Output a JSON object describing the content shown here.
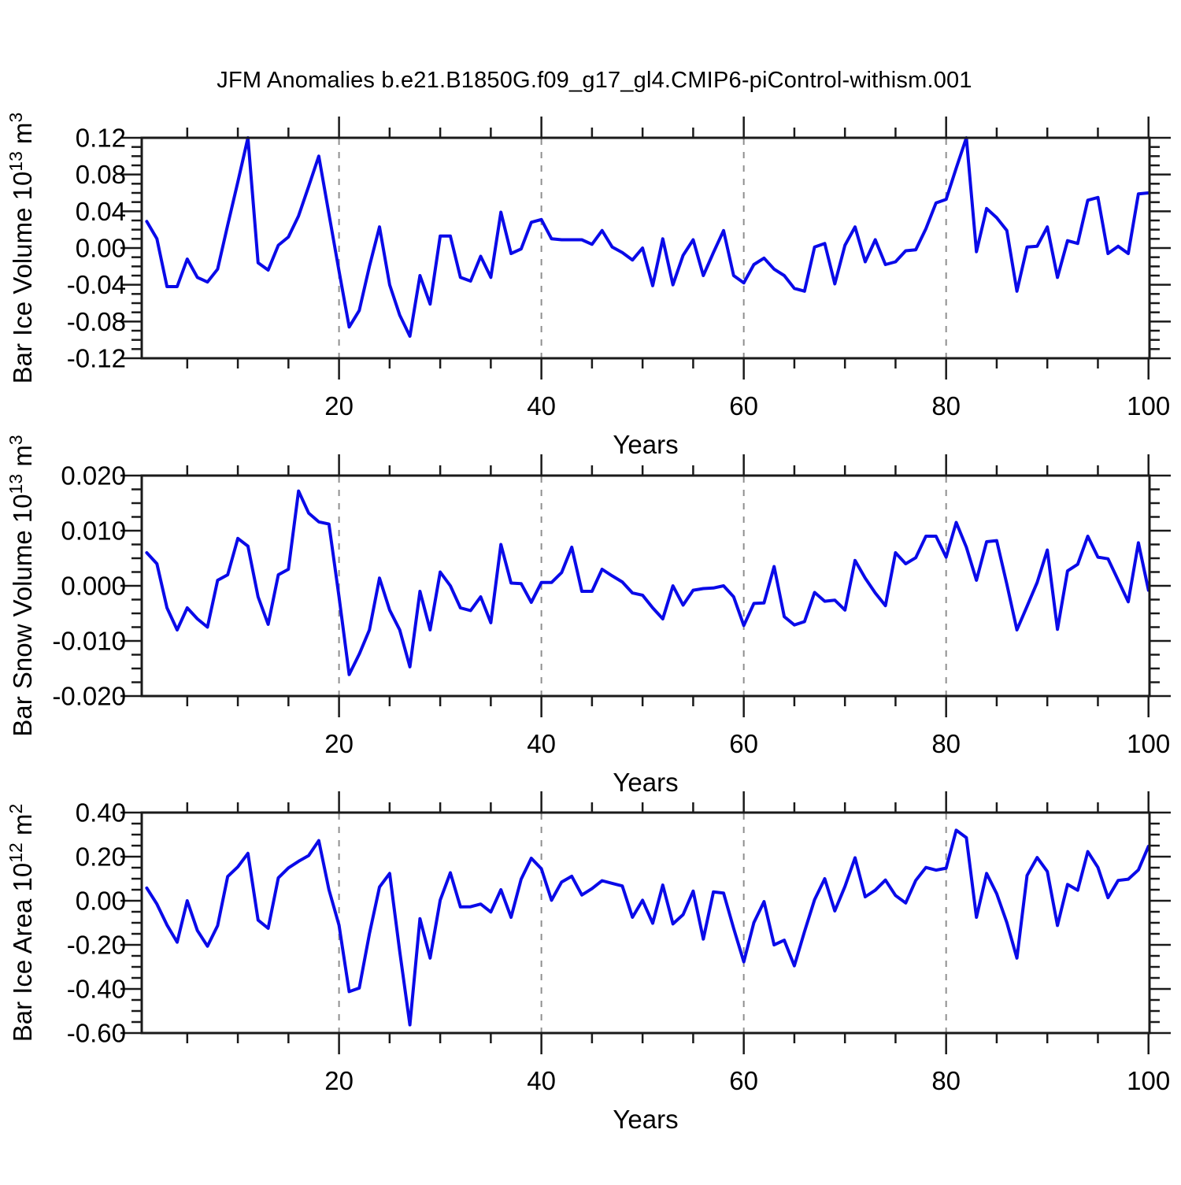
{
  "title": "JFM Anomalies b.e21.B1850G.f09_g17_gl4.CMIP6-piControl-withism.001",
  "line_color": "#0a0ae8",
  "grid_color": "#8f8f8f",
  "frame_color": "#1a1a1a",
  "chart_data": [
    {
      "id": "ice-volume",
      "type": "line",
      "ylabel": "Bar Ice Volume 10^13 m^3",
      "xlabel": "Years",
      "x_range": [
        1,
        100
      ],
      "xlim": [
        0.5,
        100.1
      ],
      "ylim": [
        -0.12,
        0.12
      ],
      "xticks": [
        20,
        40,
        60,
        80,
        100
      ],
      "xtick_labels": [
        "20",
        "40",
        "60",
        "80",
        "100"
      ],
      "xminor_step": 5,
      "grid_x": [
        20,
        40,
        60,
        80
      ],
      "ytick_values": [
        0.12,
        0.08,
        0.04,
        0.0,
        -0.04,
        -0.08,
        -0.12
      ],
      "ytick_labels": [
        "0.12",
        "0.08",
        "0.04",
        "0.00",
        "-0.04",
        "-0.08",
        "-0.12"
      ],
      "ytick_minor_step": 0.01,
      "legend": "none",
      "grid": "dashed-vertical",
      "values": [
        0.029,
        0.01,
        -0.042,
        -0.042,
        -0.012,
        -0.032,
        -0.037,
        -0.023,
        0.025,
        0.072,
        0.12,
        -0.016,
        -0.024,
        0.003,
        0.012,
        0.035,
        0.067,
        0.1,
        0.037,
        -0.025,
        -0.086,
        -0.068,
        -0.02,
        0.023,
        -0.04,
        -0.073,
        -0.096,
        -0.03,
        -0.061,
        0.013,
        0.013,
        -0.032,
        -0.036,
        -0.009,
        -0.032,
        0.039,
        -0.006,
        -0.001,
        0.028,
        0.031,
        0.01,
        0.009,
        0.009,
        0.009,
        0.004,
        0.019,
        0.001,
        -0.005,
        -0.013,
        0.0,
        -0.041,
        0.01,
        -0.04,
        -0.008,
        0.009,
        -0.03,
        -0.005,
        0.019,
        -0.03,
        -0.038,
        -0.018,
        -0.011,
        -0.023,
        -0.03,
        -0.044,
        -0.047,
        0.001,
        0.005,
        -0.039,
        0.003,
        0.023,
        -0.015,
        0.009,
        -0.018,
        -0.015,
        -0.003,
        -0.002,
        0.021,
        0.049,
        0.053,
        0.087,
        0.12,
        -0.004,
        0.043,
        0.033,
        0.019,
        -0.047,
        0.001,
        0.002,
        0.023,
        -0.032,
        0.008,
        0.005,
        0.052,
        0.055,
        -0.006,
        0.002,
        -0.006,
        0.059,
        0.06
      ]
    },
    {
      "id": "snow-volume",
      "type": "line",
      "ylabel": "Bar Snow Volume 10^13 m^3",
      "xlabel": "Years",
      "x_range": [
        1,
        100
      ],
      "xlim": [
        0.5,
        100.1
      ],
      "ylim": [
        -0.02,
        0.02
      ],
      "xticks": [
        20,
        40,
        60,
        80,
        100
      ],
      "xtick_labels": [
        "20",
        "40",
        "60",
        "80",
        "100"
      ],
      "xminor_step": 5,
      "grid_x": [
        20,
        40,
        60,
        80
      ],
      "ytick_values": [
        0.02,
        0.01,
        0.0,
        -0.01,
        -0.02
      ],
      "ytick_labels": [
        "0.020",
        "0.010",
        "0.000",
        "-0.010",
        "-0.020"
      ],
      "ytick_minor_step": 0.0025,
      "legend": "none",
      "grid": "dashed-vertical",
      "values": [
        0.006,
        0.004,
        -0.004,
        -0.008,
        -0.004,
        -0.006,
        -0.0075,
        0.001,
        0.002,
        0.0086,
        0.0072,
        -0.002,
        -0.007,
        0.002,
        0.003,
        0.0172,
        0.0132,
        0.0116,
        0.0112,
        -0.002,
        -0.0161,
        -0.0124,
        -0.008,
        0.0014,
        -0.0044,
        -0.008,
        -0.0147,
        -0.001,
        -0.008,
        0.0025,
        0.0,
        -0.004,
        -0.0045,
        -0.002,
        -0.0067,
        0.0075,
        0.0005,
        0.0004,
        -0.003,
        0.0006,
        0.0006,
        0.0024,
        0.007,
        -0.001,
        -0.001,
        0.003,
        0.0018,
        0.0007,
        -0.0013,
        -0.0017,
        -0.004,
        -0.006,
        0.0,
        -0.0035,
        -0.0008,
        -0.0005,
        -0.0004,
        0.0,
        -0.002,
        -0.0072,
        -0.0032,
        -0.0031,
        0.0035,
        -0.0056,
        -0.0071,
        -0.0065,
        -0.0012,
        -0.0028,
        -0.0026,
        -0.0044,
        0.0046,
        0.0014,
        -0.0013,
        -0.0036,
        0.006,
        0.004,
        0.0051,
        0.009,
        0.009,
        0.0052,
        0.0115,
        0.007,
        0.001,
        0.008,
        0.0082,
        0.0003,
        -0.008,
        -0.0037,
        0.0006,
        0.0065,
        -0.0079,
        0.0027,
        0.0039,
        0.009,
        0.0052,
        0.0049,
        0.001,
        -0.0029,
        0.0078,
        -0.0008
      ]
    },
    {
      "id": "ice-area",
      "type": "line",
      "ylabel": "Bar Ice Area 10^12 m^2",
      "xlabel": "Years",
      "x_range": [
        1,
        100
      ],
      "xlim": [
        0.5,
        100.1
      ],
      "ylim": [
        -0.6,
        0.4
      ],
      "xticks": [
        20,
        40,
        60,
        80,
        100
      ],
      "xtick_labels": [
        "20",
        "40",
        "60",
        "80",
        "100"
      ],
      "xminor_step": 5,
      "grid_x": [
        20,
        40,
        60,
        80
      ],
      "ytick_values": [
        0.4,
        0.2,
        0.0,
        -0.2,
        -0.4,
        -0.6
      ],
      "ytick_labels": [
        "0.40",
        "0.20",
        "0.00",
        "-0.20",
        "-0.40",
        "-0.60"
      ],
      "ytick_minor_step": 0.05,
      "legend": "none",
      "grid": "dashed-vertical",
      "values": [
        0.058,
        -0.015,
        -0.11,
        -0.188,
        0.0,
        -0.135,
        -0.206,
        -0.113,
        0.11,
        0.154,
        0.215,
        -0.088,
        -0.125,
        0.104,
        0.149,
        0.179,
        0.205,
        0.273,
        0.05,
        -0.111,
        -0.412,
        -0.396,
        -0.15,
        0.062,
        0.124,
        -0.23,
        -0.563,
        -0.081,
        -0.26,
        0.003,
        0.127,
        -0.028,
        -0.027,
        -0.015,
        -0.051,
        0.05,
        -0.075,
        0.098,
        0.193,
        0.145,
        0.002,
        0.085,
        0.111,
        0.026,
        0.055,
        0.091,
        0.079,
        0.067,
        -0.075,
        0.002,
        -0.102,
        0.071,
        -0.105,
        -0.063,
        0.044,
        -0.174,
        0.04,
        0.035,
        -0.125,
        -0.277,
        -0.099,
        -0.004,
        -0.2,
        -0.179,
        -0.295,
        -0.14,
        0.005,
        0.1,
        -0.046,
        0.065,
        0.195,
        0.018,
        0.048,
        0.094,
        0.024,
        -0.01,
        0.092,
        0.151,
        0.139,
        0.148,
        0.32,
        0.286,
        -0.075,
        0.124,
        0.032,
        -0.099,
        -0.26,
        0.115,
        0.196,
        0.133,
        -0.112,
        0.074,
        0.048,
        0.223,
        0.151,
        0.014,
        0.092,
        0.098,
        0.14,
        0.247
      ]
    }
  ]
}
